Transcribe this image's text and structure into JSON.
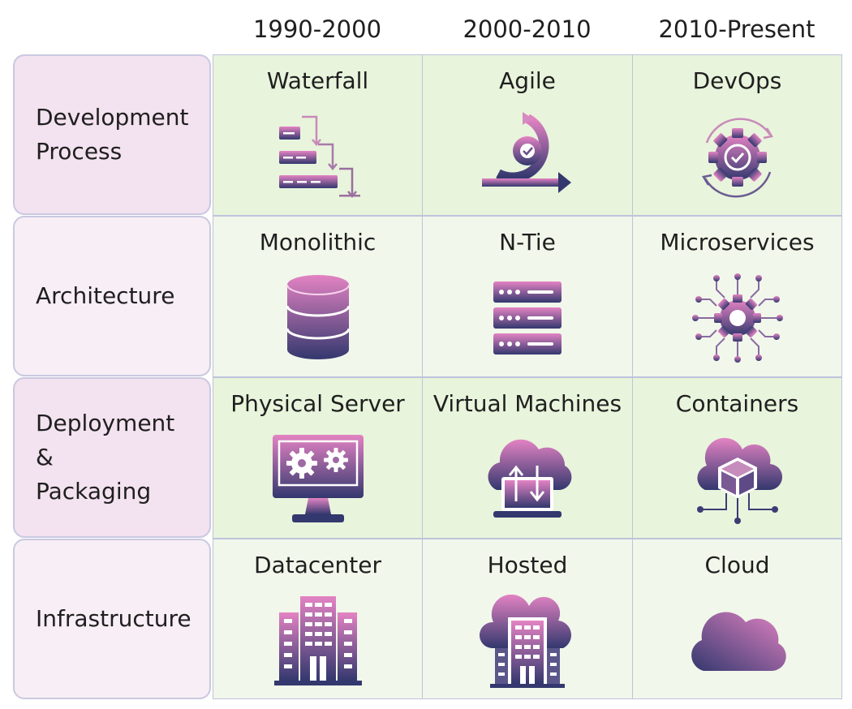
{
  "colors": {
    "icon_gradient_top": "#e383c3",
    "icon_gradient_bottom": "#33386e",
    "row_label_dark": "#f3e2ef",
    "row_label_light": "#f8eef5",
    "cell_dark": "#e8f4dc",
    "cell_light": "#f1f7ea",
    "border": "#bfc3dc"
  },
  "columns": [
    "1990-2000",
    "2000-2010",
    "2010-Present"
  ],
  "rows": [
    {
      "label": "Development\nProcess",
      "cells": [
        {
          "label": "Waterfall",
          "icon": "waterfall-icon"
        },
        {
          "label": "Agile",
          "icon": "agile-icon"
        },
        {
          "label": "DevOps",
          "icon": "devops-icon"
        }
      ]
    },
    {
      "label": "Architecture",
      "cells": [
        {
          "label": "Monolithic",
          "icon": "database-icon"
        },
        {
          "label": "N-Tie",
          "icon": "server-rack-icon"
        },
        {
          "label": "Microservices",
          "icon": "microservices-icon"
        }
      ]
    },
    {
      "label": "Deployment\n&\nPackaging",
      "cells": [
        {
          "label": "Physical Server",
          "icon": "physical-server-icon"
        },
        {
          "label": "Virtual Machines",
          "icon": "virtual-machines-icon"
        },
        {
          "label": "Containers",
          "icon": "containers-icon"
        }
      ]
    },
    {
      "label": "Infrastructure",
      "cells": [
        {
          "label": "Datacenter",
          "icon": "datacenter-icon"
        },
        {
          "label": "Hosted",
          "icon": "hosted-icon"
        },
        {
          "label": "Cloud",
          "icon": "cloud-icon"
        }
      ]
    }
  ]
}
